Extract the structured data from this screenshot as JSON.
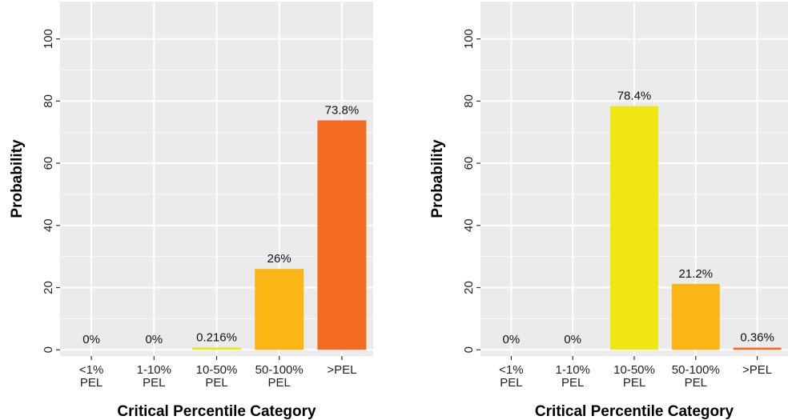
{
  "chart_data": [
    {
      "type": "bar",
      "title": "",
      "xlabel": "Critical Percentile Category",
      "ylabel": "Probability",
      "categories": [
        "<1% PEL",
        "1-10% PEL",
        "10-50% PEL",
        "50-100% PEL",
        ">PEL"
      ],
      "values": [
        0,
        0,
        0.216,
        26,
        73.8
      ],
      "data_labels": [
        "0%",
        "0%",
        "0.216%",
        "26%",
        "73.8%"
      ],
      "yticks": [
        0,
        20,
        40,
        60,
        80,
        100
      ],
      "ylim": [
        -2,
        112
      ],
      "bar_colors": [
        "#f0e614",
        "#f0e614",
        "#f0e614",
        "#fbb616",
        "#f46b24"
      ],
      "grid": true,
      "background": "#ebebeb"
    },
    {
      "type": "bar",
      "title": "",
      "xlabel": "Critical Percentile Category",
      "ylabel": "Probability",
      "categories": [
        "<1% PEL",
        "1-10% PEL",
        "10-50% PEL",
        "50-100% PEL",
        ">PEL"
      ],
      "values": [
        0,
        0,
        78.4,
        21.2,
        0.36
      ],
      "data_labels": [
        "0%",
        "0%",
        "78.4%",
        "21.2%",
        "0.36%"
      ],
      "yticks": [
        0,
        20,
        40,
        60,
        80,
        100
      ],
      "ylim": [
        -2,
        112
      ],
      "bar_colors": [
        "#f0e614",
        "#f0e614",
        "#f0e614",
        "#fbb616",
        "#f46b24"
      ],
      "grid": true,
      "background": "#ebebeb"
    }
  ]
}
